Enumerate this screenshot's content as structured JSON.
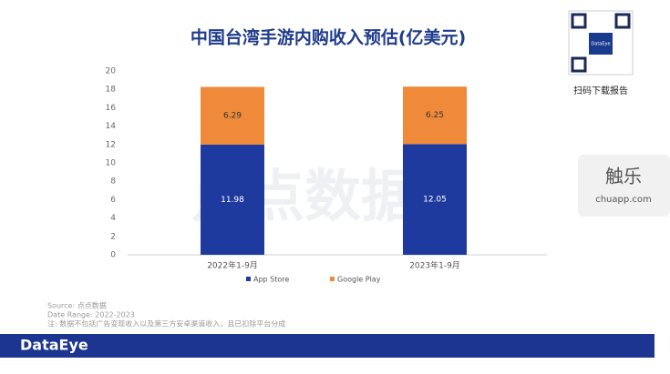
{
  "chart_data": {
    "type": "bar",
    "stacked": true,
    "title": "中国台湾手游内购收入预估(亿美元)",
    "categories": [
      "2022年1-9月",
      "2023年1-9月"
    ],
    "series": [
      {
        "name": "App Store",
        "color": "#1f3a9e",
        "values": [
          11.98,
          12.05
        ]
      },
      {
        "name": "Google Play",
        "color": "#ee8a3a",
        "values": [
          6.29,
          6.25
        ]
      }
    ],
    "ylim": [
      0,
      20
    ],
    "yticks": [
      0,
      2,
      4,
      6,
      8,
      10,
      12,
      14,
      16,
      18,
      20
    ],
    "grid": false,
    "legend": "bottom"
  },
  "page": {
    "source": "Source: 点点数据",
    "date_range": "Date Range: 2022-2023",
    "note": "注: 数据不包括广告变现收入以及第三方安卓渠道收入，且已扣除平台分成",
    "qr_label": "扫码下载报告",
    "qr_brand": "DataEye",
    "watermark": "点点数据",
    "footer_brand": "DataEye",
    "site_name": "触乐",
    "site_url": "chuapp.com"
  }
}
